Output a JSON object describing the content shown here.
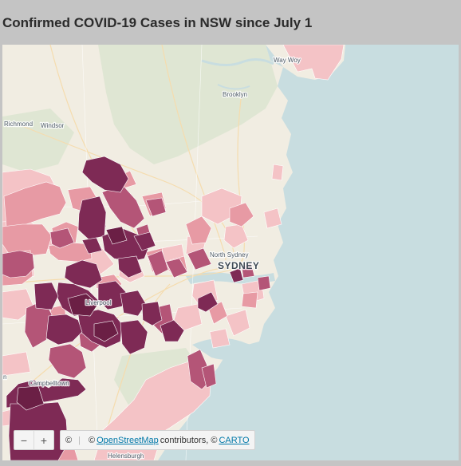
{
  "title": "Confirmed COVID-19 Cases in NSW since July 1",
  "colors": {
    "water": "#c8dde0",
    "land": "#f1ede2",
    "park": "#dfe6d3",
    "level_1": "#f4c3c6",
    "level_2": "#e79aa4",
    "level_3": "#b45577",
    "level_4": "#7e2a55",
    "level_5": "#6b1f45"
  },
  "places": {
    "way_woy": "Way Woy",
    "brooklyn": "Brooklyn",
    "richmond": "Richmond",
    "windsor": "Windsor",
    "north_sydney": "North Sydney",
    "sydney": "SYDNEY",
    "liverpool": "Liverpool",
    "campbelltown": "Campbelltown",
    "helensburgh": "Helensburgh",
    "edge_n": "n"
  },
  "controls": {
    "zoom_out": "−",
    "zoom_in": "+"
  },
  "attribution": {
    "leaflet_symbol": "©",
    "prefix": "©",
    "osm_link": "OpenStreetMap",
    "middle": "contributors, ©",
    "carto_link": "CARTO"
  }
}
